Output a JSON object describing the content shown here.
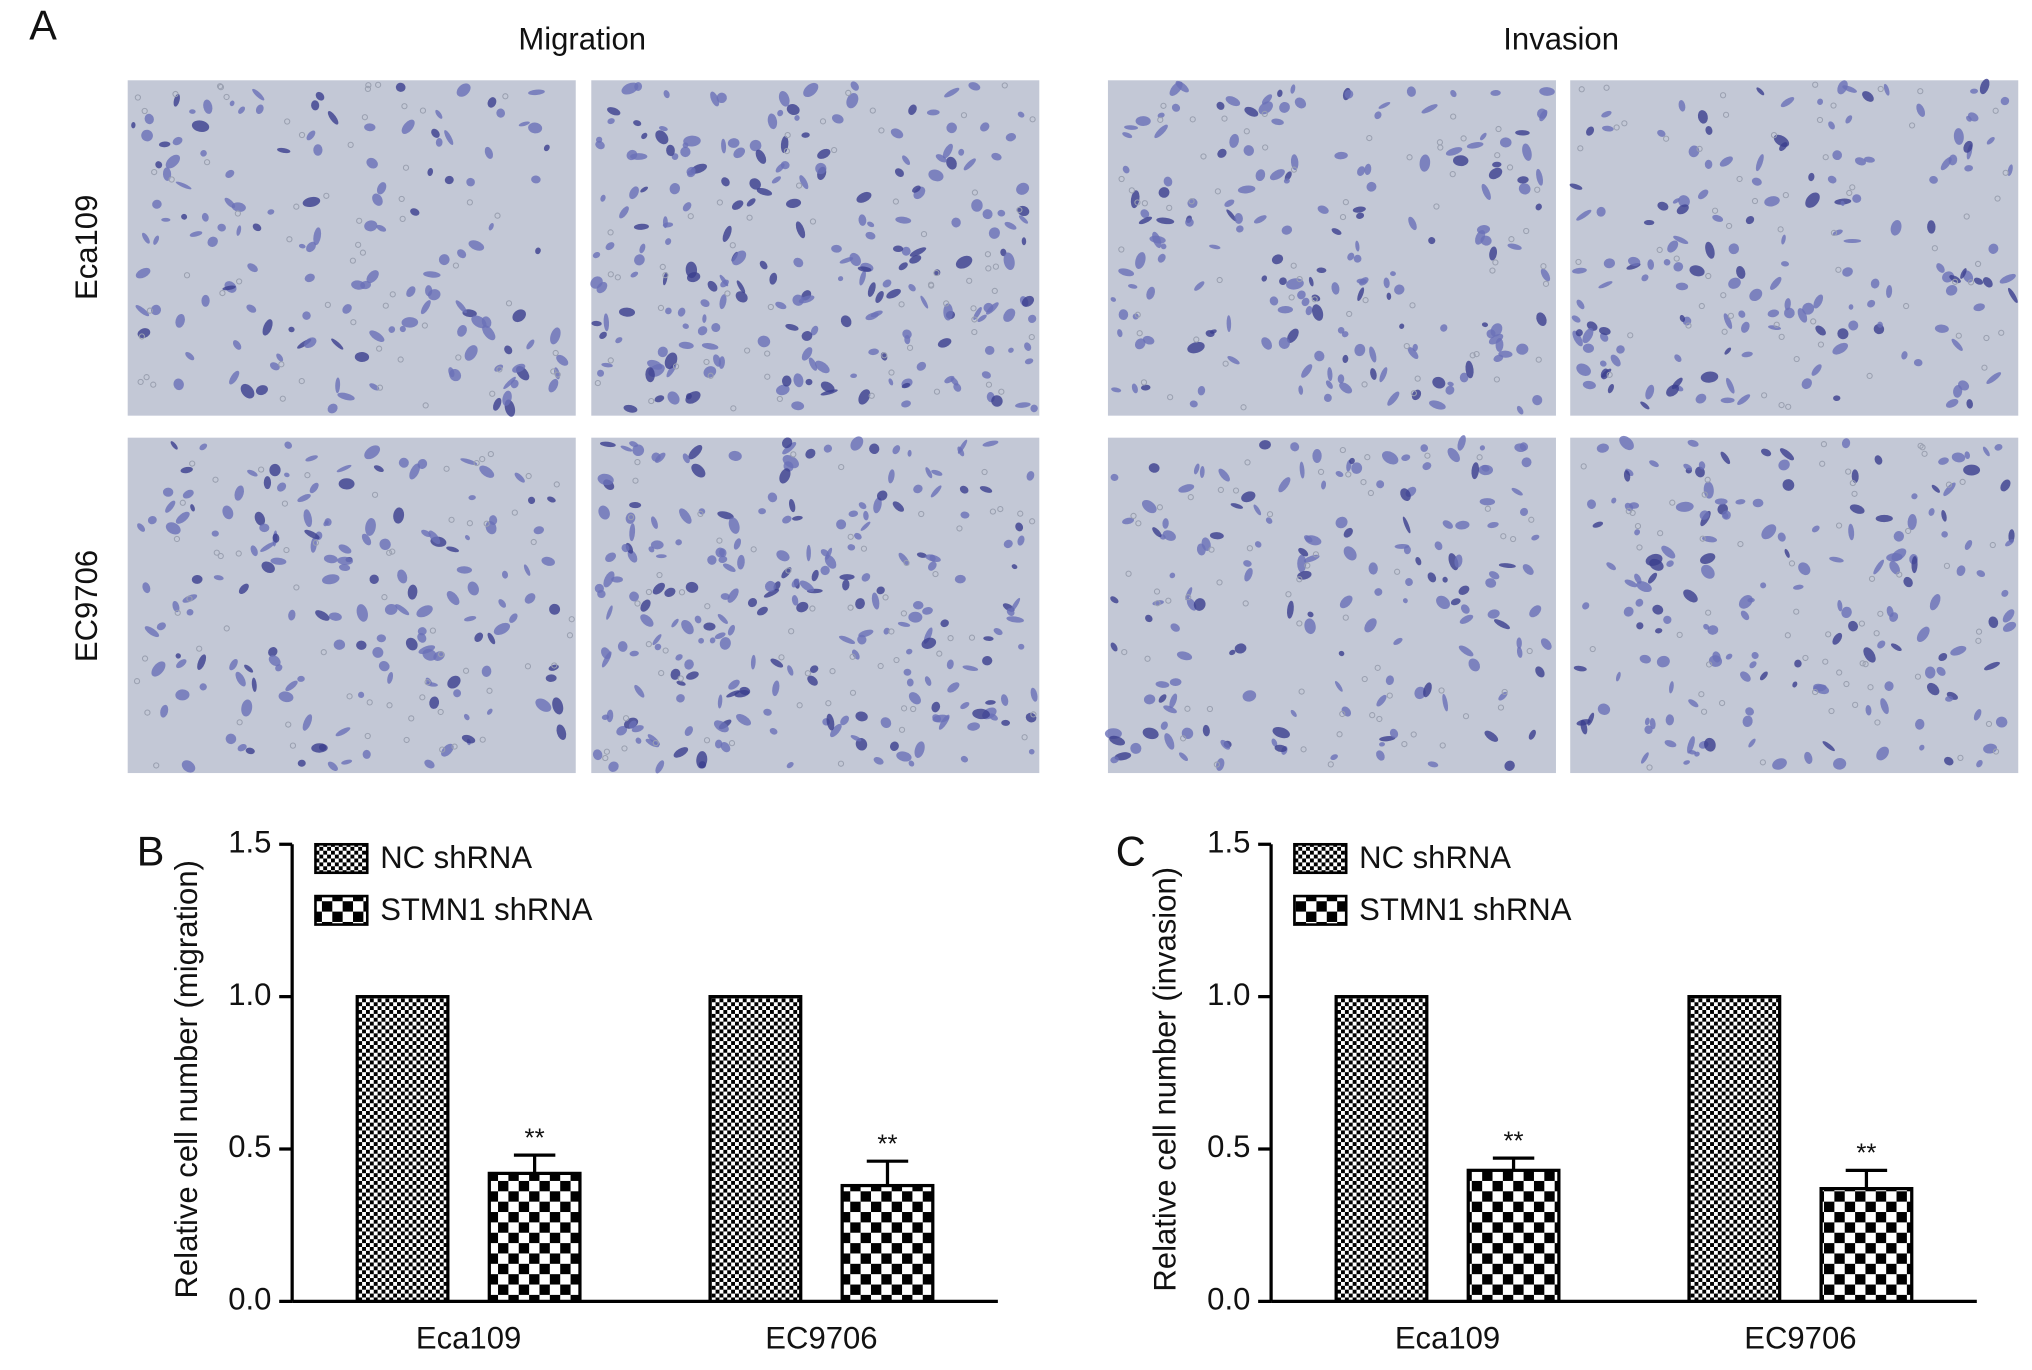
{
  "panel_a": {
    "label": "A",
    "columns": [
      "Migration",
      "Invasion"
    ],
    "rows": [
      "Eca109",
      "EC9706"
    ]
  },
  "chart_data": [
    {
      "type": "bar",
      "label": "B",
      "y_label": "Relative cell number (migration)",
      "categories": [
        "Eca109",
        "EC9706"
      ],
      "series": [
        {
          "name": "NC shRNA",
          "color": "#000000",
          "pattern": "fine",
          "values": [
            1.0,
            1.0
          ]
        },
        {
          "name": "STMN1 shRNA",
          "color": "#000000",
          "pattern": "coarse",
          "values": [
            0.42,
            0.38
          ],
          "errors": [
            0.06,
            0.08
          ],
          "annotations": [
            "**",
            "**"
          ]
        }
      ],
      "ylim": [
        0,
        1.5
      ],
      "yticks": [
        {
          "value": 0,
          "label": "0.0"
        },
        0.5,
        {
          "value": 1,
          "label": "1.0"
        },
        1.5
      ],
      "legend": "top-left"
    },
    {
      "type": "bar",
      "label": "C",
      "y_label": "Relative cell number (invasion)",
      "categories": [
        "Eca109",
        "EC9706"
      ],
      "series": [
        {
          "name": "NC shRNA",
          "color": "#000000",
          "pattern": "fine",
          "values": [
            1.0,
            1.0
          ]
        },
        {
          "name": "STMN1 shRNA",
          "color": "#000000",
          "pattern": "coarse",
          "values": [
            0.43,
            0.37
          ],
          "errors": [
            0.04,
            0.06
          ],
          "annotations": [
            "**",
            "**"
          ]
        }
      ],
      "ylim": [
        0,
        1.5
      ],
      "yticks": [
        {
          "value": 0,
          "label": "0.0"
        },
        0.5,
        {
          "value": 1,
          "label": "1.0"
        },
        1.5
      ],
      "legend": "top-left"
    }
  ]
}
